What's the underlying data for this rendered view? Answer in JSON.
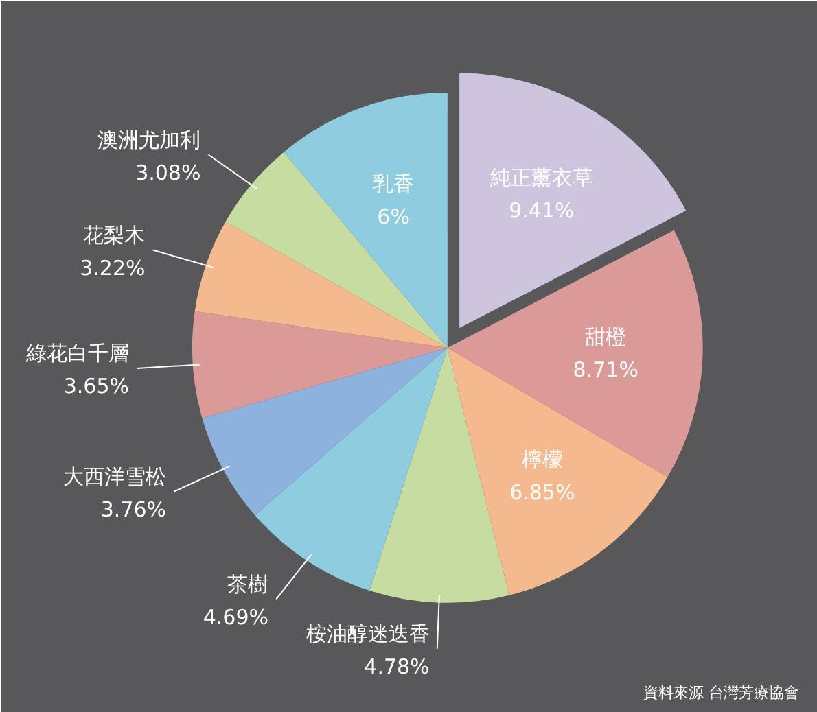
{
  "chart_data": {
    "type": "pie",
    "categories": [
      "純正薰衣草",
      "甜橙",
      "檸檬",
      "桉油醇迷迭香",
      "茶樹",
      "大西洋雪松",
      "綠花白千層",
      "花梨木",
      "澳洲尤加利",
      "乳香"
    ],
    "values": [
      9.41,
      8.71,
      6.85,
      4.78,
      4.69,
      3.76,
      3.65,
      3.22,
      3.08,
      6
    ],
    "colors": [
      "#cdc4dd",
      "#d99a98",
      "#f5b98e",
      "#c7dca0",
      "#8ecde0",
      "#8eb2de",
      "#d99a98",
      "#f5b98e",
      "#c7dca0",
      "#8ecde0"
    ],
    "value_labels": [
      "9.41%",
      "8.71%",
      "6.85%",
      "4.78%",
      "4.69%",
      "3.76%",
      "3.65%",
      "3.22%",
      "3.08%",
      "6%"
    ],
    "annotations": [
      "資料來源  台灣芳療協會"
    ]
  }
}
